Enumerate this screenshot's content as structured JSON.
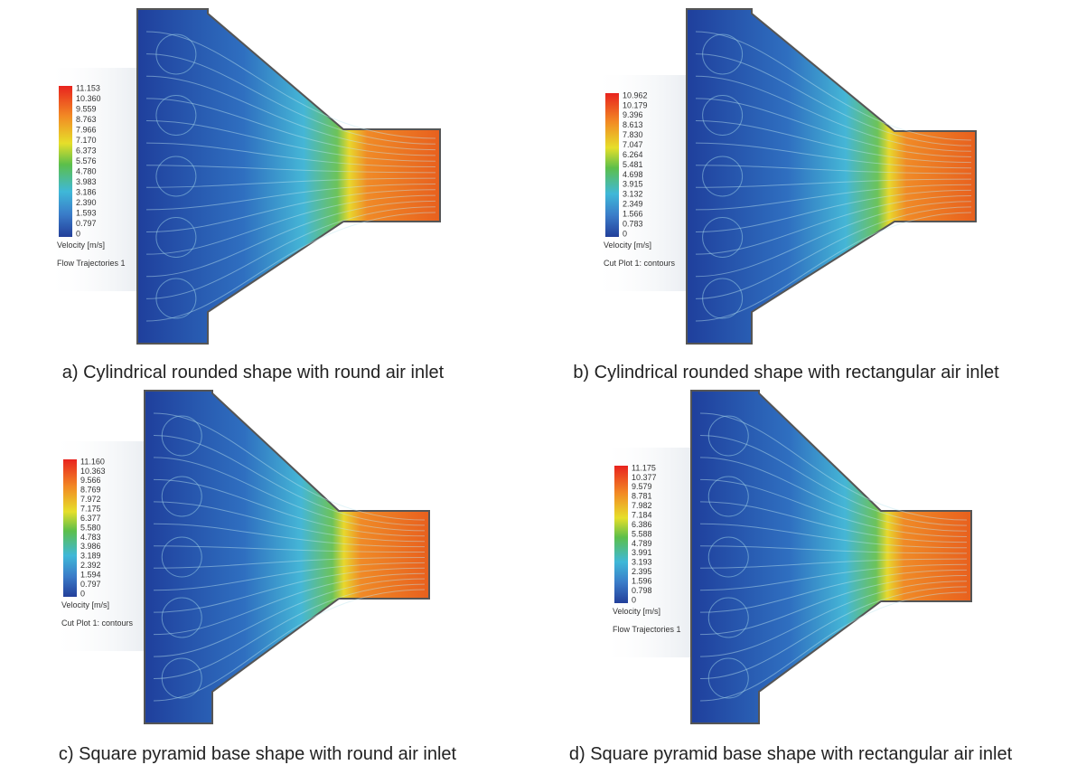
{
  "panels": [
    {
      "legend_title": "Velocity [m/s]",
      "legend_values": [
        "11.153",
        "10.360",
        "9.559",
        "8.763",
        "7.966",
        "7.170",
        "6.373",
        "5.576",
        "4.780",
        "3.983",
        "3.186",
        "2.390",
        "1.593",
        "0.797",
        "0"
      ],
      "plot_label": "Flow Trajectories 1",
      "caption": "a) Cylindrical rounded shape with round air inlet"
    },
    {
      "legend_title": "Velocity [m/s]",
      "legend_values": [
        "10.962",
        "10.179",
        "9.396",
        "8.613",
        "7.830",
        "7.047",
        "6.264",
        "5.481",
        "4.698",
        "3.915",
        "3.132",
        "2.349",
        "1.566",
        "0.783",
        "0"
      ],
      "plot_label": "Cut Plot 1: contours",
      "caption": "b) Cylindrical rounded shape with rectangular air inlet"
    },
    {
      "legend_title": "Velocity [m/s]",
      "legend_values": [
        "11.160",
        "10.363",
        "9.566",
        "8.769",
        "7.972",
        "7.175",
        "6.377",
        "5.580",
        "4.783",
        "3.986",
        "3.189",
        "2.392",
        "1.594",
        "0.797",
        "0"
      ],
      "plot_label": "Cut Plot 1: contours",
      "caption": "c) Square pyramid base shape with round air inlet"
    },
    {
      "legend_title": "Velocity [m/s]",
      "legend_values": [
        "11.175",
        "10.377",
        "9.579",
        "8.781",
        "7.982",
        "7.184",
        "6.386",
        "5.588",
        "4.789",
        "3.991",
        "3.193",
        "2.395",
        "1.596",
        "0.798",
        "0"
      ],
      "plot_label": "Flow Trajectories 1",
      "caption": "d) Square pyramid base shape with rectangular air inlet"
    }
  ]
}
